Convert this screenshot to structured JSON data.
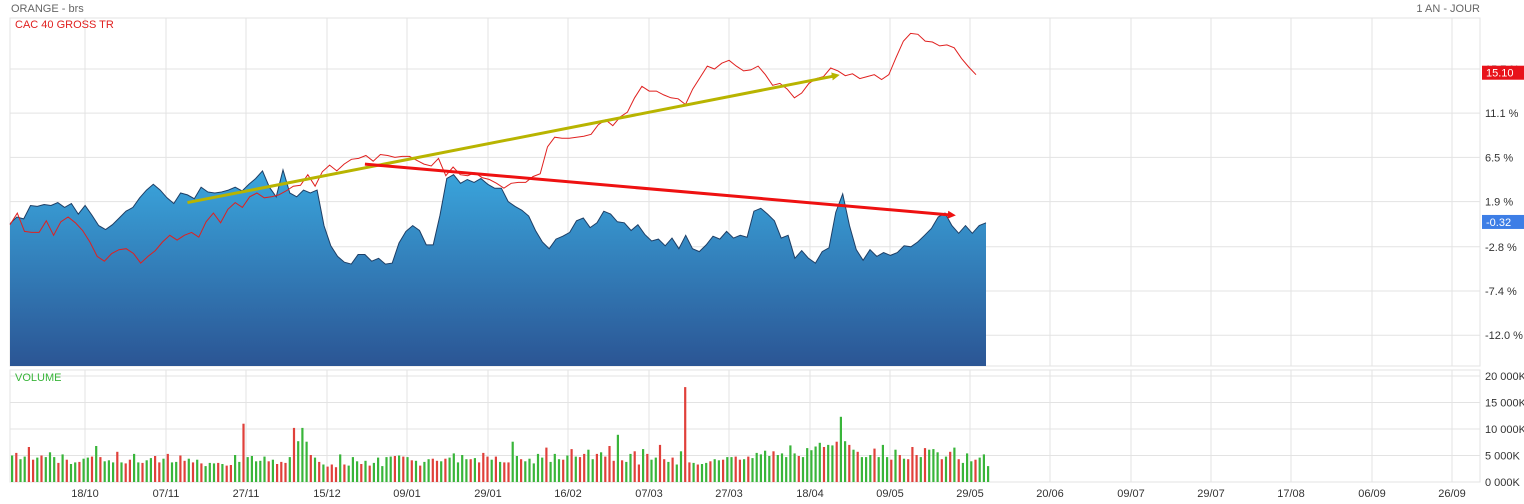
{
  "header": {
    "title": "ORANGE - brs",
    "period": "1 AN - JOUR"
  },
  "colors": {
    "area_top": "#3aa6dd",
    "area_bottom": "#2b5594",
    "area_stroke": "#1e3f66",
    "benchmark": "#e0201f",
    "volume_up": "#39b53a",
    "volume_down": "#e0403a",
    "trend_red": "#ee1111",
    "trend_yellow": "#b8b400",
    "grid": "#e3e3e3",
    "badge_red": "#e8121a",
    "badge_blue": "#3d7ee6"
  },
  "chart_data": [
    {
      "type": "area",
      "legend": "CAC 40 GROSS TR",
      "y_ticks": [
        "15.7 %",
        "11.1 %",
        "6.5 %",
        "1.9 %",
        "-2.8 %",
        "-7.4 %",
        "-12.0 %"
      ],
      "y_tick_values": [
        15.7,
        11.1,
        6.5,
        1.9,
        -2.8,
        -7.4,
        -12.0
      ],
      "ylim": [
        -15.2,
        21.0
      ],
      "x_ticks": [
        "18/10",
        "07/11",
        "27/11",
        "15/12",
        "09/01",
        "29/01",
        "16/02",
        "07/03",
        "27/03",
        "18/04",
        "09/05",
        "29/05",
        "20/06",
        "09/07",
        "29/07",
        "17/08",
        "06/09",
        "26/09"
      ],
      "last_values": {
        "benchmark": "15.10",
        "stock": "-0.32"
      },
      "series": [
        {
          "name": "ORANGE",
          "kind": "area",
          "values": [
            -0.4,
            0.3,
            0.1,
            1.5,
            1.4,
            1.6,
            1.5,
            1.8,
            1.3,
            1.7,
            0.6,
            1.5,
            0.5,
            -0.6,
            -1.0,
            -0.5,
            0.2,
            0.9,
            1.3,
            2.3,
            3.1,
            3.7,
            3.1,
            2.3,
            1.7,
            2.8,
            2.6,
            2.2,
            3.4,
            2.9,
            2.8,
            2.9,
            3.1,
            3.4,
            3.0,
            3.7,
            4.3,
            5.1,
            3.4,
            2.4,
            5.2,
            2.8,
            2.4,
            3.1,
            2.8,
            3.1,
            -0.6,
            -2.7,
            -3.8,
            -4.4,
            -4.6,
            -3.6,
            -3.6,
            -4.3,
            -4.0,
            -4.6,
            -4.5,
            -2.4,
            -1.2,
            -0.6,
            -1.1,
            -2.6,
            -2.6,
            0.5,
            4.3,
            4.7,
            3.8,
            4.2,
            3.9,
            4.3,
            3.7,
            3.3,
            3.3,
            1.9,
            1.4,
            1.0,
            0.4,
            -1.1,
            -2.3,
            -3.0,
            -2.0,
            -1.7,
            -1.3,
            -0.1,
            0.2,
            -0.8,
            -0.3,
            0.9,
            0.6,
            -0.2,
            -0.3,
            -1.1,
            -0.5,
            -1.5,
            -2.2,
            -2.0,
            -2.7,
            -1.9,
            -3.0,
            -1.6,
            -3.0,
            -3.3,
            -2.6,
            -1.7,
            -2.0,
            -1.2,
            -1.9,
            -1.6,
            -1.8,
            0.9,
            1.2,
            0.6,
            -0.1,
            -1.9,
            -1.6,
            -4.0,
            -3.2,
            -4.0,
            -4.5,
            -3.3,
            -2.9,
            0.8,
            2.7,
            -0.6,
            -3.1,
            -4.2,
            -3.1,
            -3.8,
            -3.4,
            -3.7,
            -3.4,
            -2.7,
            -2.8,
            -2.3,
            -1.6,
            -0.9,
            0.3,
            0.7,
            -0.6,
            -1.4,
            -0.6,
            -1.4,
            -0.6,
            -0.3
          ]
        },
        {
          "name": "CAC 40 GROSS TR",
          "kind": "line",
          "values": [
            -0.5,
            0.7,
            -1.2,
            -1.3,
            -1.3,
            -0.1,
            -1.6,
            -0.2,
            0.3,
            -0.3,
            -1.1,
            -2.3,
            -3.8,
            -4.3,
            -3.5,
            -3.1,
            -3.0,
            -3.5,
            -4.5,
            -3.8,
            -3.2,
            -2.3,
            -1.6,
            -2.1,
            -1.6,
            -1.3,
            -1.8,
            -0.2,
            0.7,
            -0.3,
            1.1,
            1.8,
            1.3,
            2.4,
            2.8,
            2.3,
            2.4,
            2.6,
            3.0,
            3.5,
            3.6,
            4.7,
            3.5,
            5.0,
            5.7,
            5.1,
            5.8,
            6.3,
            6.4,
            6.7,
            6.1,
            6.8,
            6.7,
            6.5,
            6.6,
            6.6,
            6.2,
            5.8,
            5.6,
            6.4,
            4.6,
            5.5,
            4.7,
            4.6,
            4.9,
            4.4,
            4.2,
            3.8,
            3.3,
            3.8,
            3.9,
            3.9,
            4.5,
            4.8,
            7.6,
            8.6,
            8.5,
            8.5,
            8.6,
            8.7,
            8.9,
            9.9,
            10.4,
            9.8,
            10.7,
            11.2,
            12.7,
            13.9,
            13.4,
            13.4,
            13.0,
            12.7,
            12.6,
            12.0,
            13.6,
            14.8,
            16.0,
            15.7,
            16.3,
            16.6,
            16.0,
            15.5,
            15.6,
            16.0,
            15.1,
            14.0,
            14.2,
            13.6,
            12.7,
            13.2,
            14.2,
            14.7,
            14.9,
            15.8,
            15.5,
            15.0,
            15.2,
            14.7,
            14.9,
            15.1,
            14.6,
            15.1,
            16.9,
            18.6,
            19.4,
            19.3,
            18.6,
            18.5,
            18.1,
            18.2,
            17.9,
            16.8,
            15.9,
            15.1
          ]
        }
      ],
      "annotations": [
        {
          "label": "",
          "from": {
            "x_index": 26,
            "value": 1.8
          },
          "to": {
            "x_index": 121,
            "value": 15.0
          }
        },
        {
          "label": "",
          "from": {
            "x_index": 52,
            "value": 5.8
          },
          "to": {
            "x_index": 138,
            "value": 0.5
          }
        }
      ]
    },
    {
      "type": "bar",
      "legend": "VOLUME",
      "y_ticks": [
        "20 000K",
        "15 000K",
        "10 000K",
        "5 000K",
        "0 000K"
      ],
      "y_tick_values": [
        20000,
        15000,
        10000,
        5000,
        0
      ],
      "ylim": [
        0,
        20000
      ],
      "unit": "K",
      "values": [
        5000,
        5500,
        4300,
        4800,
        6600,
        4200,
        4600,
        5000,
        4700,
        5600,
        4700,
        3600,
        5200,
        4200,
        3400,
        3700,
        3800,
        4400,
        4600,
        4800,
        6800,
        4700,
        3900,
        4100,
        3700,
        5700,
        3700,
        3500,
        4200,
        5300,
        3700,
        3600,
        4100,
        4500,
        4900,
        3700,
        4400,
        5300,
        3700,
        3800,
        5000,
        4000,
        4400,
        3700,
        4200,
        3500,
        3000,
        3600,
        3500,
        3600,
        3400,
        3100,
        3200,
        5100,
        3800,
        11000,
        4700,
        4900,
        3900,
        4000,
        4800,
        3900,
        4200,
        3400,
        3800,
        3600,
        4700,
        10200,
        7700,
        10200,
        7600,
        5100,
        4600,
        3800,
        3300,
        2900,
        3300,
        2800,
        5200,
        3300,
        3100,
        4700,
        3900,
        3400,
        4000,
        3100,
        3600,
        4600,
        3000,
        4700,
        4800,
        4900,
        5000,
        4800,
        4700,
        4100,
        4000,
        3100,
        3800,
        4300,
        4400,
        4000,
        3900,
        4400,
        4600,
        5400,
        3700,
        5100,
        4300,
        4300,
        4500,
        3700,
        5500,
        4800,
        4200,
        4800,
        3800,
        3700,
        3700,
        7600,
        4900,
        4300,
        3900,
        4400,
        3500,
        5300,
        4600,
        6500,
        3800,
        5300,
        4300,
        4200,
        5000,
        6200,
        4800,
        4700,
        5300,
        6100,
        4300,
        5300,
        5600,
        4800,
        6800,
        4000,
        8900,
        4100,
        3800,
        5300,
        5800,
        3300,
        6200,
        5300,
        4200,
        4600,
        7000,
        4300,
        3800,
        4600,
        3300,
        5800,
        17900,
        3700,
        3600,
        3300,
        3400,
        3600,
        3900,
        4300,
        4100,
        4200,
        4700,
        4700,
        4800,
        4200,
        4300,
        4800,
        4500,
        5500,
        5200,
        5900,
        4900,
        5800,
        5100,
        5400,
        4700,
        6900,
        5400,
        4900,
        4700,
        6400,
        6000,
        6700,
        7400,
        6600,
        7000,
        6900,
        7600,
        12300,
        7700,
        7000,
        6100,
        5700,
        4700,
        4700,
        5100,
        6300,
        4700,
        7000,
        4700,
        4200,
        6100,
        5100,
        4400,
        4300,
        6600,
        5100,
        4700,
        6400,
        6100,
        6200,
        5600,
        4300,
        4800,
        5700,
        6500,
        4300,
        3600,
        5400,
        3900,
        4200,
        4600,
        5200,
        3000
      ]
    }
  ]
}
